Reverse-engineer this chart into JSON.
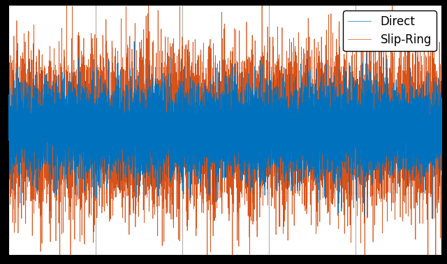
{
  "title": "",
  "xlabel": "",
  "ylabel": "",
  "color_direct": "#0072BD",
  "color_slipring": "#D95319",
  "legend_direct": "Direct",
  "legend_slipring": "Slip-Ring",
  "n_points": 10000,
  "seed": 42,
  "amplitude_direct": 0.18,
  "amplitude_slipring": 0.3,
  "xlim": [
    0,
    10000
  ],
  "ylim": [
    -1.0,
    1.0
  ],
  "grid_color": "#b0b0b0",
  "linewidth_direct": 0.5,
  "linewidth_slipring": 0.5,
  "legend_fontsize": 12,
  "legend_loc": "upper right",
  "figsize": [
    6.4,
    3.78
  ],
  "dpi": 100,
  "figure_facecolor": "#000000",
  "axes_facecolor": "#ffffff",
  "n_xticks": 5,
  "n_yticks": 4
}
